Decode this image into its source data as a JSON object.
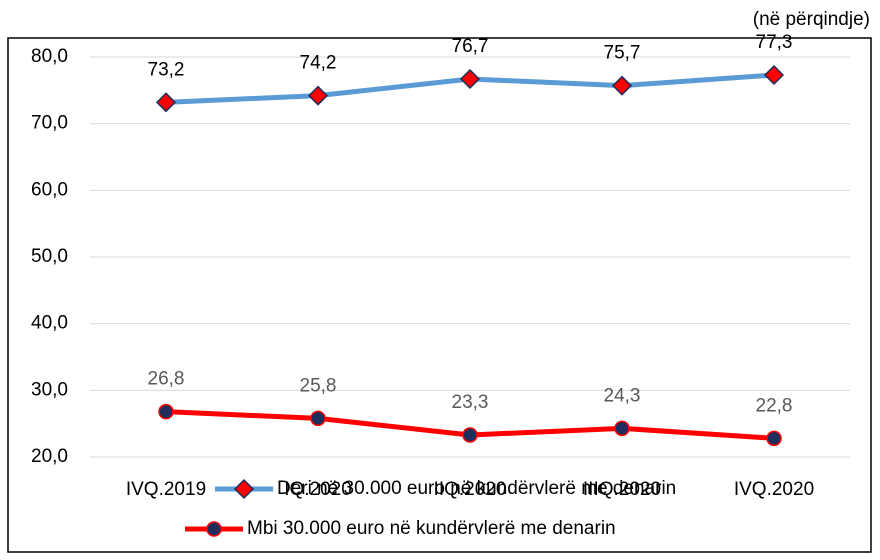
{
  "chart_data": {
    "type": "line",
    "note": "(në përqindje)",
    "categories": [
      "IVQ.2019",
      "IQ.2020",
      "IIQ.2020",
      "IIIQ.2020",
      "IVQ.2020"
    ],
    "series": [
      {
        "name": "Deri në 30.000 euro në kundërvlerë me denarin",
        "color": "#5b9bd5",
        "marker": "diamond",
        "marker_color": "#ff0000",
        "values": [
          73.2,
          74.2,
          76.7,
          75.7,
          77.3
        ],
        "value_labels": [
          "73,2",
          "74,2",
          "76,7",
          "75,7",
          "77,3"
        ]
      },
      {
        "name": "Mbi 30.000 euro në kundërvlerë me denarin",
        "color": "#ff0000",
        "marker": "circle",
        "marker_color": "#1f2d5c",
        "values": [
          26.8,
          25.8,
          23.3,
          24.3,
          22.8
        ],
        "value_labels": [
          "26,8",
          "25,8",
          "23,3",
          "24,3",
          "22,8"
        ]
      }
    ],
    "ylim": [
      20,
      80
    ],
    "yticks": [
      {
        "value": 20,
        "label": "20,0"
      },
      {
        "value": 30,
        "label": "30,0"
      },
      {
        "value": 40,
        "label": "40,0"
      },
      {
        "value": 50,
        "label": "50,0"
      },
      {
        "value": 60,
        "label": "60,0"
      },
      {
        "value": 70,
        "label": "70,0"
      },
      {
        "value": 80,
        "label": "80,0"
      }
    ],
    "grid": true
  }
}
